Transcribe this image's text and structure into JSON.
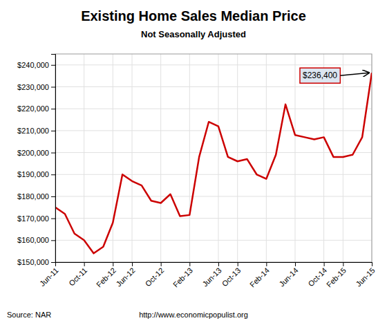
{
  "chart_data": {
    "type": "line",
    "title": "Existing Home Sales Median Price",
    "subtitle": "Not Seasonally Adjusted",
    "source": "Source: NAR",
    "url": "http://www.economicpopulist.org",
    "annotation": "$236,400",
    "color": "#cc0000",
    "grid": true,
    "categories": [
      "Jun-11",
      null,
      null,
      "Oct-11",
      null,
      null,
      "Feb-12",
      null,
      "Jun-12",
      null,
      null,
      "Oct-12",
      null,
      null,
      "Feb-13",
      null,
      null,
      "Jun-13",
      null,
      "Oct-13",
      null,
      null,
      "Feb-14",
      null,
      null,
      "Jun-14",
      null,
      null,
      "Oct-14",
      null,
      "Feb-15",
      null,
      null,
      "Jun-15"
    ],
    "values": [
      175000,
      172000,
      163000,
      160000,
      154000,
      157000,
      168000,
      190000,
      187000,
      185000,
      178000,
      177000,
      181000,
      171000,
      171500,
      198000,
      214000,
      212000,
      198000,
      196000,
      197000,
      190000,
      188000,
      199000,
      222000,
      208000,
      207000,
      206000,
      207000,
      198000,
      198000,
      199000,
      207000,
      236400
    ],
    "ylim": [
      150000,
      245000
    ],
    "yticks": [
      {
        "value": 150000,
        "label": "$150,000"
      },
      {
        "value": 160000,
        "label": "$160,000"
      },
      {
        "value": 170000,
        "label": "$170,000"
      },
      {
        "value": 180000,
        "label": "$180,000"
      },
      {
        "value": 190000,
        "label": "$190,000"
      },
      {
        "value": 200000,
        "label": "$200,000"
      },
      {
        "value": 210000,
        "label": "$210,000"
      },
      {
        "value": 220000,
        "label": "$220,000"
      },
      {
        "value": 230000,
        "label": "$230,000"
      },
      {
        "value": 240000,
        "label": "$240,000"
      }
    ]
  }
}
